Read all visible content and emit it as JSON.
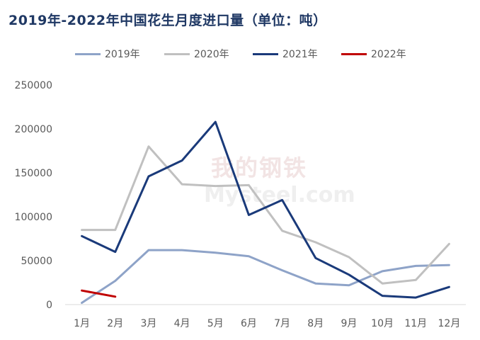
{
  "chart_data": {
    "type": "line",
    "title": "2019年-2022年中国花生月度进口量（单位：吨）",
    "xlabel": "",
    "ylabel": "",
    "categories": [
      "1月",
      "2月",
      "3月",
      "4月",
      "5月",
      "6月",
      "7月",
      "8月",
      "9月",
      "10月",
      "11月",
      "12月"
    ],
    "ylim": [
      0,
      250000
    ],
    "yticks": [
      0,
      50000,
      100000,
      150000,
      200000,
      250000
    ],
    "ytick_labels": [
      "0",
      "50000",
      "100000",
      "150000",
      "200000",
      "250000"
    ],
    "grid": false,
    "legend_position": "top",
    "series": [
      {
        "name": "2019年",
        "color": "#8ea3c8",
        "values": [
          2000,
          27000,
          62000,
          62000,
          59000,
          55000,
          39000,
          24000,
          22000,
          38000,
          44000,
          45000
        ]
      },
      {
        "name": "2020年",
        "color": "#c0c0c0",
        "values": [
          85000,
          85000,
          180000,
          137000,
          135000,
          136000,
          84000,
          71000,
          54000,
          24000,
          28000,
          69000
        ]
      },
      {
        "name": "2021年",
        "color": "#1a3a7a",
        "values": [
          78000,
          60000,
          146000,
          164000,
          208000,
          102000,
          119000,
          53000,
          34000,
          10000,
          8000,
          20000
        ]
      },
      {
        "name": "2022年",
        "color": "#c00000",
        "values": [
          16000,
          9000,
          null,
          null,
          null,
          null,
          null,
          null,
          null,
          null,
          null,
          null
        ]
      }
    ]
  },
  "watermark": {
    "top": "我的钢铁",
    "bottom": "Mysteel.com"
  }
}
